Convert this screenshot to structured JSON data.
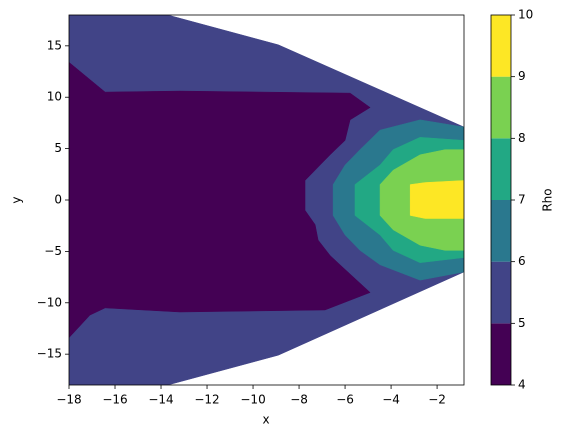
{
  "chart_data": {
    "type": "contour",
    "xlabel": "x",
    "ylabel": "y",
    "colorbar_label": "Rho",
    "xlim": [
      -18,
      -0.83
    ],
    "ylim": [
      -18,
      18
    ],
    "xticks": [
      {
        "value": -18,
        "label": "−18"
      },
      {
        "value": -16,
        "label": "−16"
      },
      {
        "value": -14,
        "label": "−14"
      },
      {
        "value": -12,
        "label": "−12"
      },
      {
        "value": -10,
        "label": "−10"
      },
      {
        "value": -8,
        "label": "−8"
      },
      {
        "value": -6,
        "label": "−6"
      },
      {
        "value": -4,
        "label": "−4"
      },
      {
        "value": -2,
        "label": "−2"
      }
    ],
    "yticks": [
      {
        "value": -15,
        "label": "−15"
      },
      {
        "value": -10,
        "label": "−10"
      },
      {
        "value": -5,
        "label": "−5"
      },
      0,
      5,
      10,
      15
    ],
    "levels": [
      4,
      5,
      6,
      7,
      8,
      9,
      10
    ],
    "colors": [
      "#440154",
      "#414487",
      "#2a788e",
      "#22a884",
      "#7ad151",
      "#fde725"
    ],
    "regions": [
      {
        "level": 5,
        "x": [
          -18,
          -13.7,
          -8.9,
          -0.83,
          -0.83,
          -8.9,
          -13.7,
          -18
        ],
        "y": [
          18,
          18,
          15.1,
          7.1,
          -7.0,
          -15.1,
          -18,
          -18
        ]
      },
      {
        "level": 4,
        "x": [
          -18,
          -16.43,
          -13.17,
          -5.78,
          -4.91,
          -5.78,
          -6.0,
          -6.65,
          -7.74,
          -7.74,
          -7.3,
          -7.17,
          -6.65,
          -6.22,
          -4.91,
          -6.87,
          -13.17,
          -16.43,
          -17.09,
          -18
        ],
        "y": [
          13.4,
          10.5,
          10.6,
          10.4,
          9.0,
          7.8,
          5.8,
          4.4,
          1.9,
          -1.0,
          -2.4,
          -3.9,
          -5.4,
          -6.3,
          -9.0,
          -10.7,
          -10.9,
          -10.5,
          -11.2,
          -13.4
        ]
      },
      {
        "level": 6,
        "x": [
          -4.48,
          -5.35,
          -6.0,
          -6.52,
          -6.52,
          -6.0,
          -5.35,
          -4.48,
          -2.74,
          -0.83,
          -0.83,
          -2.74
        ],
        "y": [
          6.8,
          4.9,
          3.4,
          1.5,
          -1.5,
          -3.4,
          -4.9,
          -6.3,
          -7.8,
          -7.0,
          7.1,
          7.8
        ]
      },
      {
        "level": 7,
        "x": [
          -4.48,
          -3.91,
          -2.74,
          -0.83,
          -0.83,
          -2.74,
          -3.91,
          -4.48,
          -5.57,
          -5.57
        ],
        "y": [
          3.4,
          4.9,
          6.1,
          5.8,
          -5.6,
          -6.1,
          -4.9,
          -3.4,
          -1.5,
          1.5
        ]
      },
      {
        "level": 8,
        "x": [
          -4.48,
          -3.91,
          -2.74,
          -1.65,
          -0.83,
          -0.83,
          -1.65,
          -2.74,
          -3.91,
          -4.48
        ],
        "y": [
          1.5,
          2.9,
          4.4,
          4.9,
          4.9,
          -4.9,
          -4.9,
          -4.4,
          -2.9,
          -1.5
        ]
      },
      {
        "level": 9,
        "x": [
          -3.17,
          -2.52,
          -0.83,
          -0.83,
          -2.52,
          -3.17
        ],
        "y": [
          1.5,
          1.7,
          1.9,
          -1.8,
          -1.8,
          -1.5
        ]
      }
    ]
  }
}
